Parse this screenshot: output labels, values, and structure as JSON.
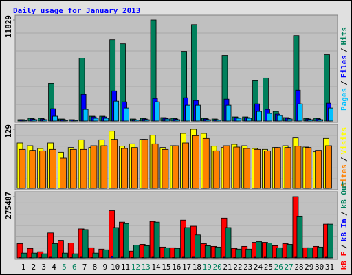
{
  "title": "Daily usage for January 2013",
  "legend_separator": "/",
  "chart_data": [
    {
      "type": "bar",
      "ylim": [
        0,
        11829
      ],
      "yticks": [
        11829
      ],
      "series": [
        {
          "name": "Pages",
          "color": "#00c0ff",
          "values": [
            80,
            160,
            160,
            560,
            80,
            80,
            1360,
            320,
            320,
            2320,
            1520,
            120,
            160,
            2240,
            240,
            160,
            1840,
            1840,
            160,
            120,
            1840,
            320,
            320,
            1120,
            880,
            640,
            240,
            2000,
            160,
            160,
            1520
          ]
        },
        {
          "name": "Files",
          "color": "#0000ff",
          "values": [
            160,
            240,
            240,
            1440,
            160,
            120,
            3120,
            480,
            480,
            3520,
            2240,
            160,
            240,
            2640,
            320,
            240,
            2720,
            2400,
            240,
            160,
            2560,
            400,
            400,
            2000,
            1360,
            800,
            320,
            3600,
            240,
            240,
            2080
          ]
        },
        {
          "name": "Hits",
          "color": "#00805c",
          "values": [
            160,
            320,
            320,
            4400,
            240,
            160,
            7360,
            560,
            560,
            9520,
            9040,
            240,
            320,
            11829,
            400,
            320,
            8160,
            11280,
            320,
            240,
            7680,
            480,
            480,
            4720,
            5040,
            1120,
            400,
            10000,
            320,
            320,
            7760
          ]
        }
      ]
    },
    {
      "type": "bar",
      "ylim": [
        0,
        129
      ],
      "yticks": [
        129
      ],
      "series": [
        {
          "name": "Sites",
          "color": "#ff8000",
          "values": [
            85,
            83,
            82,
            85,
            66,
            85,
            85,
            93,
            93,
            107,
            87,
            89,
            107,
            97,
            85,
            93,
            99,
            115,
            109,
            82,
            93,
            90,
            87,
            85,
            82,
            89,
            89,
            92,
            89,
            83,
            93
          ]
        },
        {
          "name": "Visits",
          "color": "#ffff00",
          "values": [
            99,
            93,
            87,
            99,
            79,
            89,
            106,
            89,
            106,
            125,
            92,
            97,
            107,
            116,
            89,
            93,
            120,
            129,
            120,
            92,
            89,
            96,
            93,
            87,
            85,
            89,
            93,
            110,
            90,
            80,
            109
          ]
        }
      ]
    },
    {
      "type": "bar",
      "ylim": [
        0,
        275487
      ],
      "yticks": [
        275487
      ],
      "categories": [
        "1",
        "2",
        "3",
        "4",
        "5",
        "6",
        "7",
        "8",
        "9",
        "10",
        "11",
        "12",
        "13",
        "14",
        "15",
        "16",
        "17",
        "18",
        "19",
        "20",
        "21",
        "22",
        "23",
        "24",
        "25",
        "26",
        "27",
        "28",
        "29",
        "30",
        "31"
      ],
      "category_colors": [
        "#000000",
        "#000000",
        "#000000",
        "#000000",
        "#00805c",
        "#00805c",
        "#000000",
        "#000000",
        "#000000",
        "#000000",
        "#000000",
        "#00805c",
        "#00805c",
        "#000000",
        "#000000",
        "#000000",
        "#000000",
        "#000000",
        "#00805c",
        "#00805c",
        "#000000",
        "#000000",
        "#000000",
        "#000000",
        "#000000",
        "#00805c",
        "#00805c",
        "#000000",
        "#000000",
        "#000000",
        "#000000"
      ],
      "series": [
        {
          "name": "kB F",
          "color": "#ff0000",
          "values": [
            63567,
            42378,
            27243,
            112000,
            78702,
            66594,
            130161,
            45405,
            39351,
            211890,
            160431,
            30270,
            60540,
            163458,
            48432,
            45405,
            169512,
            142269,
            63567,
            51459,
            178593,
            42378,
            51459,
            69621,
            69621,
            54486,
            63567,
            275487,
            45405,
            51459,
            151350
          ]
        },
        {
          "name": "kB In",
          "color": "#0000ff",
          "values": [
            1500,
            1500,
            1500,
            3000,
            1500,
            1500,
            3000,
            1500,
            1500,
            6000,
            3000,
            1500,
            1500,
            3000,
            1500,
            1500,
            3000,
            3000,
            1500,
            1500,
            3000,
            1500,
            1500,
            3000,
            3000,
            1500,
            1500,
            3000,
            1500,
            1500,
            3000
          ]
        },
        {
          "name": "kB Out",
          "color": "#00805c",
          "values": [
            21189,
            21189,
            18162,
            63567,
            21189,
            18162,
            127134,
            21189,
            36324,
            136215,
            154377,
            57513,
            54486,
            160431,
            45405,
            42378,
            136215,
            102918,
            54486,
            48432,
            136215,
            39351,
            39351,
            72648,
            66594,
            45405,
            60540,
            187674,
            45405,
            48432,
            151350
          ]
        }
      ]
    }
  ]
}
